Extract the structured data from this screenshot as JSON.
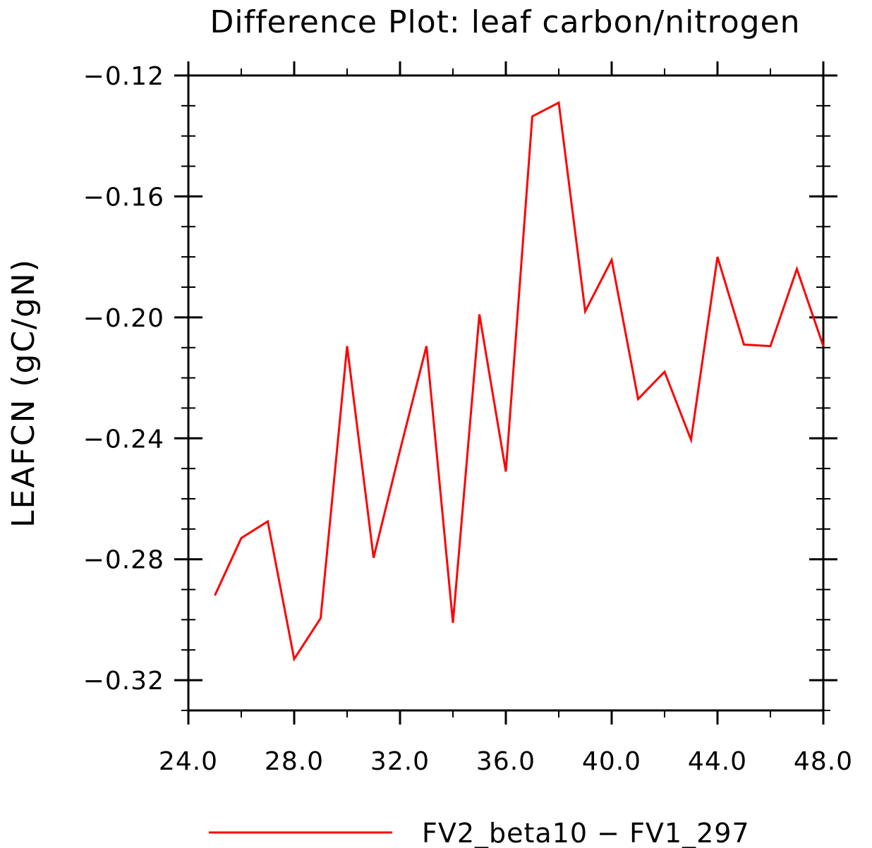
{
  "chart_data": {
    "type": "line",
    "title": "Difference Plot: leaf carbon/nitrogen",
    "ylabel": "LEAFCN  (gC/gN)",
    "xlabel": "",
    "xlim": [
      24,
      48
    ],
    "ylim": [
      -0.33,
      -0.12
    ],
    "x_ticks": [
      24,
      28,
      32,
      36,
      40,
      44,
      48
    ],
    "x_tick_labels": [
      "24.0",
      "28.0",
      "32.0",
      "36.0",
      "40.0",
      "44.0",
      "48.0"
    ],
    "y_ticks": [
      -0.12,
      -0.16,
      -0.2,
      -0.24,
      -0.28,
      -0.32
    ],
    "y_tick_labels": [
      "−0.12",
      "−0.16",
      "−0.20",
      "−0.24",
      "−0.28",
      "−0.32"
    ],
    "grid": false,
    "legend_position": "bottom",
    "series": [
      {
        "name": "FV2_beta10 − FV1_297",
        "color": "#ff0000",
        "x": [
          25,
          26,
          27,
          28,
          29,
          30,
          31,
          32,
          33,
          34,
          35,
          36,
          37,
          38,
          39,
          40,
          41,
          42,
          43,
          44,
          45,
          46,
          47,
          48
        ],
        "values": [
          -0.292,
          -0.273,
          -0.2675,
          -0.313,
          -0.2995,
          -0.2095,
          -0.2795,
          -0.244,
          -0.2095,
          -0.301,
          -0.199,
          -0.251,
          -0.1335,
          -0.129,
          -0.198,
          -0.181,
          -0.227,
          -0.218,
          -0.2405,
          -0.18,
          -0.209,
          -0.2095,
          -0.184,
          -0.2095
        ]
      }
    ]
  }
}
